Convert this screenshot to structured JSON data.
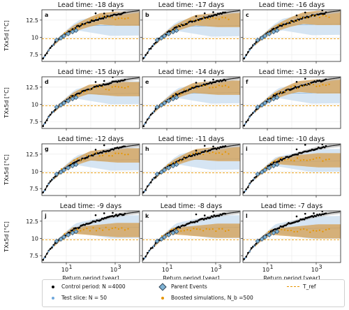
{
  "chart_data": {
    "type": "scatter",
    "layout": "4x3 panels",
    "ylabel": "TXx5d [°C]",
    "xlabel": "Return period [year]",
    "x_scale": "log",
    "xlim": [
      1,
      10000
    ],
    "ylim": [
      6.5,
      14
    ],
    "x_ticks": [
      "10^1",
      "10^3"
    ],
    "y_ticks": [
      "7.5",
      "10",
      "12.5"
    ],
    "T_ref": 9.8,
    "colors": {
      "control": "#000000",
      "test_slice": "#6fa8dc",
      "parent": "#7fb3d5",
      "boosted": "#e69500",
      "tref": "#e69500",
      "test_band": "#cfe0f1",
      "boosted_band": "#d4a35a"
    },
    "control_curve": {
      "x": [
        1.05,
        1.5,
        2,
        3,
        5,
        10,
        20,
        50,
        100,
        300,
        1000,
        4000
      ],
      "y": [
        6.8,
        7.6,
        8.3,
        9.0,
        9.8,
        10.6,
        11.3,
        11.9,
        12.3,
        12.8,
        13.3,
        13.7
      ]
    },
    "panels": [
      {
        "label": "a",
        "title": "Lead time: -18 days",
        "boosted_plateau": 12.6,
        "test_plateau": 11.7
      },
      {
        "label": "b",
        "title": "Lead time: -17 days",
        "boosted_plateau": 12.4,
        "test_plateau": 11.6
      },
      {
        "label": "c",
        "title": "Lead time: -16 days",
        "boosted_plateau": 12.7,
        "test_plateau": 11.8
      },
      {
        "label": "d",
        "title": "Lead time: -15 days",
        "boosted_plateau": 12.1,
        "test_plateau": 11.5
      },
      {
        "label": "e",
        "title": "Lead time: -14 days",
        "boosted_plateau": 12.3,
        "test_plateau": 11.6
      },
      {
        "label": "f",
        "title": "Lead time: -13 days",
        "boosted_plateau": 12.5,
        "test_plateau": 11.6
      },
      {
        "label": "g",
        "title": "Lead time: -12 days",
        "boosted_plateau": 12.2,
        "test_plateau": 11.6
      },
      {
        "label": "h",
        "title": "Lead time: -11 days",
        "boosted_plateau": 12.4,
        "test_plateau": 11.7
      },
      {
        "label": "i",
        "title": "Lead time: -10 days",
        "boosted_plateau": 11.5,
        "test_plateau": 11.4
      },
      {
        "label": "j",
        "title": "Lead time: -9 days",
        "boosted_plateau": 11.1,
        "test_plateau": 11.5
      },
      {
        "label": "k",
        "title": "Lead time: -8 days",
        "boosted_plateau": 11.0,
        "test_plateau": 11.5
      },
      {
        "label": "l",
        "title": "Lead time: -7 days",
        "boosted_plateau": 10.9,
        "test_plateau": 11.4
      }
    ],
    "parent_events": {
      "x": [
        4,
        6,
        8,
        12,
        18,
        25
      ],
      "y": [
        9.6,
        9.9,
        10.2,
        10.5,
        10.8,
        11.0
      ]
    },
    "legend": {
      "control": "Control period: N =4000",
      "test": "Test slice: N = 50",
      "parent": "Parent Events",
      "boosted": "Boosted simulations, N_b =500",
      "tref": "T_ref"
    }
  }
}
